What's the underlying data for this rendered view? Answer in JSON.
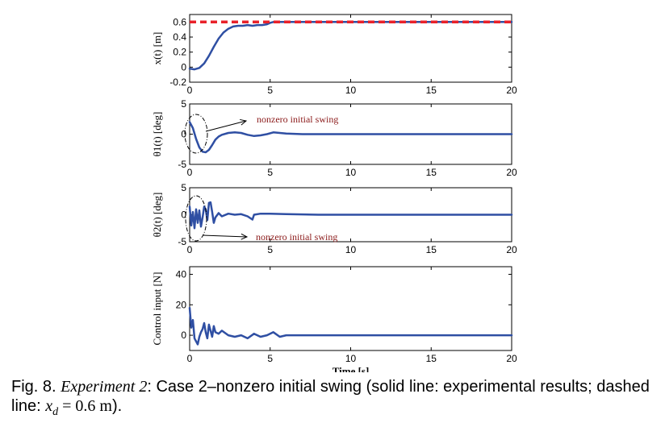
{
  "chart_data": [
    {
      "type": "line",
      "ylabel": "x(t) [m]",
      "xlim": [
        0,
        20
      ],
      "ylim": [
        -0.2,
        0.7
      ],
      "xticks": [
        "0",
        "5",
        "10",
        "15",
        "20"
      ],
      "yticks": [
        "-0.2",
        "0",
        "0.2",
        "0.4",
        "0.6"
      ],
      "ytick_values": [
        -0.2,
        0,
        0.2,
        0.4,
        0.6
      ],
      "grid": false,
      "series": [
        {
          "style": "solid",
          "color": "#2f4fa3",
          "x": [
            0,
            0.3,
            0.6,
            0.9,
            1.2,
            1.5,
            1.8,
            2.1,
            2.4,
            2.7,
            3.0,
            3.3,
            3.6,
            3.9,
            4.2,
            4.5,
            4.8,
            5.0,
            5.2,
            6,
            8,
            10,
            12,
            14,
            16,
            18,
            20
          ],
          "y": [
            -0.02,
            -0.03,
            -0.01,
            0.05,
            0.15,
            0.27,
            0.38,
            0.46,
            0.51,
            0.54,
            0.55,
            0.55,
            0.56,
            0.55,
            0.56,
            0.56,
            0.57,
            0.59,
            0.6,
            0.6,
            0.6,
            0.6,
            0.6,
            0.6,
            0.6,
            0.6,
            0.6
          ]
        },
        {
          "style": "dashed",
          "color": "#e8222a",
          "x": [
            0,
            20
          ],
          "y": [
            0.6,
            0.6
          ]
        }
      ]
    },
    {
      "type": "line",
      "ylabel": "θ1(t) [deg]",
      "xlim": [
        0,
        20
      ],
      "ylim": [
        -5,
        5
      ],
      "xticks": [
        "0",
        "5",
        "10",
        "15",
        "20"
      ],
      "yticks": [
        "-5",
        "0",
        "5"
      ],
      "ytick_values": [
        -5,
        0,
        5
      ],
      "grid": false,
      "annotation": {
        "text": "nonzero initial swing",
        "x": 4.1,
        "y": 2.0
      },
      "series": [
        {
          "style": "solid",
          "color": "#2f4fa3",
          "x": [
            0,
            0.2,
            0.4,
            0.6,
            0.8,
            1.0,
            1.2,
            1.4,
            1.6,
            1.8,
            2.0,
            2.4,
            2.8,
            3.2,
            3.6,
            4.0,
            4.4,
            4.8,
            5.2,
            5.6,
            6,
            7,
            8,
            10,
            12,
            14,
            16,
            18,
            20
          ],
          "y": [
            2.0,
            1.0,
            -0.8,
            -2.2,
            -2.9,
            -3.0,
            -2.6,
            -1.8,
            -0.9,
            -0.4,
            -0.1,
            0.2,
            0.3,
            0.2,
            -0.1,
            -0.3,
            -0.2,
            0.0,
            0.3,
            0.2,
            0.1,
            0.0,
            0.0,
            0.0,
            0.0,
            0.0,
            0.0,
            0.0,
            0.0
          ]
        }
      ]
    },
    {
      "type": "line",
      "ylabel": "θ2(t) [deg]",
      "xlim": [
        0,
        20
      ],
      "ylim": [
        -5,
        5
      ],
      "xticks": [
        "0",
        "5",
        "10",
        "15",
        "20"
      ],
      "yticks": [
        "-5",
        "0",
        "5"
      ],
      "ytick_values": [
        -5,
        0,
        5
      ],
      "grid": false,
      "annotation": {
        "text": "nonzero initial swing",
        "x": 4.1,
        "y": -2.3
      },
      "series": [
        {
          "style": "solid",
          "color": "#2f4fa3",
          "x": [
            0,
            0.1,
            0.2,
            0.3,
            0.4,
            0.5,
            0.6,
            0.7,
            0.8,
            0.9,
            1.0,
            1.1,
            1.2,
            1.3,
            1.4,
            1.5,
            1.6,
            1.8,
            2.0,
            2.4,
            2.8,
            3.2,
            3.6,
            3.9,
            4.0,
            4.4,
            5.0,
            6,
            8,
            10,
            12,
            14,
            16,
            18,
            20
          ],
          "y": [
            1.5,
            -2.0,
            0.5,
            -2.5,
            1.0,
            -1.5,
            0.8,
            -2.2,
            -0.5,
            1.5,
            1.0,
            -1.0,
            2.2,
            2.3,
            0.5,
            -1.5,
            -0.5,
            0.3,
            -0.3,
            0.2,
            0.0,
            0.1,
            -0.3,
            -0.9,
            0.0,
            0.2,
            0.2,
            0.1,
            0.0,
            0.0,
            0.0,
            0.0,
            0.0,
            0.0,
            0.0
          ]
        }
      ]
    },
    {
      "type": "line",
      "ylabel": "Control input [N]",
      "xlabel": "Time [s]",
      "xlim": [
        0,
        20
      ],
      "ylim": [
        -10,
        45
      ],
      "xticks": [
        "0",
        "5",
        "10",
        "15",
        "20"
      ],
      "yticks": [
        "0",
        "20",
        "40"
      ],
      "ytick_values": [
        0,
        20,
        40
      ],
      "grid": false,
      "series": [
        {
          "style": "solid",
          "color": "#2f4fa3",
          "x": [
            0,
            0.1,
            0.2,
            0.3,
            0.4,
            0.5,
            0.6,
            0.7,
            0.8,
            0.9,
            1.0,
            1.1,
            1.2,
            1.3,
            1.4,
            1.5,
            1.6,
            1.8,
            2.0,
            2.4,
            2.8,
            3.2,
            3.6,
            4.0,
            4.4,
            4.8,
            5.2,
            5.6,
            6,
            7,
            8,
            10,
            12,
            14,
            16,
            18,
            20
          ],
          "y": [
            18,
            5,
            10,
            -2,
            -4,
            -6,
            -1,
            2,
            4,
            8,
            2,
            -2,
            7,
            3,
            -1,
            6,
            2,
            1,
            3,
            0,
            -1,
            0,
            -2,
            1,
            -1,
            0,
            2,
            -1,
            0,
            0,
            0,
            0,
            0,
            0,
            0,
            0,
            0
          ]
        }
      ]
    }
  ],
  "caption": {
    "prefix": "Fig. 8.  ",
    "title": "Experiment 2",
    "text1": ": Case 2–nonzero initial swing (solid line: experimental results; dashed line: ",
    "var": "x",
    "sub": "d",
    "eq": " = 0.6 ",
    "unit": "m",
    "end": ")."
  }
}
